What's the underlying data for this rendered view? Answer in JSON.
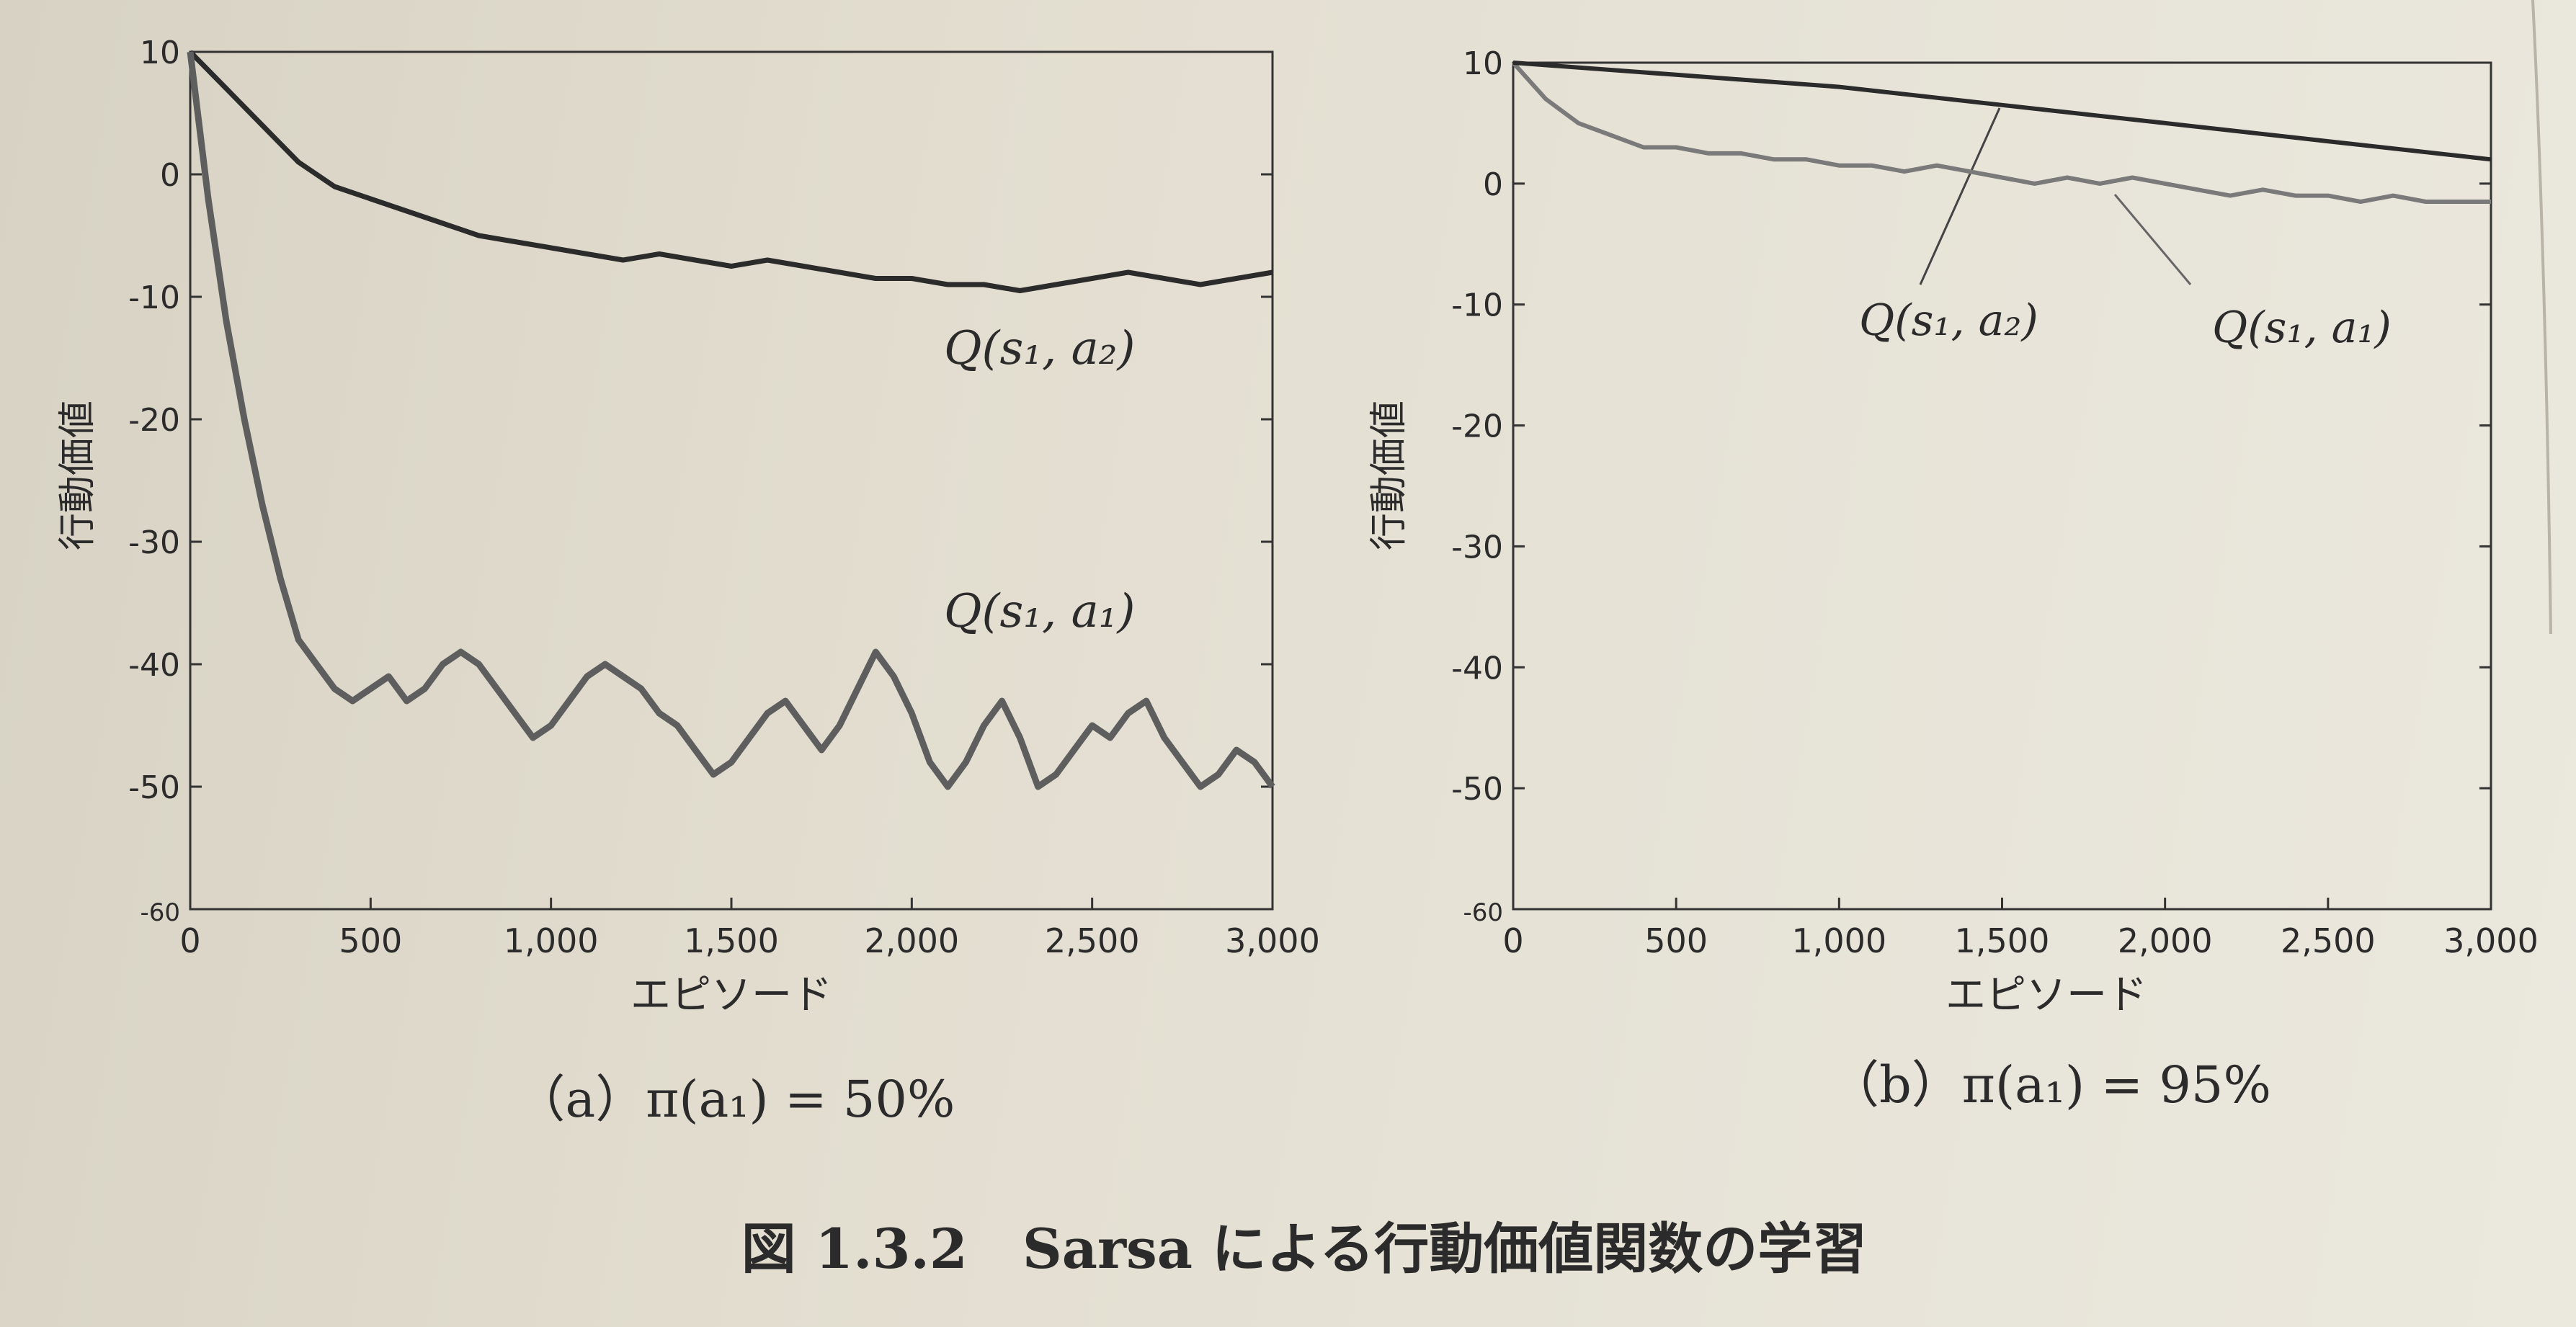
{
  "figure_caption": "図 1.3.2　Sarsa による行動価値関数の学習",
  "chart_data": [
    {
      "type": "line",
      "panel_label": "（a）π(a₁) = 50%",
      "xlabel": "エピソード",
      "ylabel": "行動価値",
      "xlim": [
        0,
        3000
      ],
      "ylim": [
        -60,
        10
      ],
      "xticks": [
        0,
        500,
        1000,
        1500,
        2000,
        2500,
        3000
      ],
      "xtick_labels": [
        "0",
        "500",
        "1,000",
        "1,500",
        "2,000",
        "2,500",
        "3,000"
      ],
      "yticks": [
        10,
        0,
        -10,
        -20,
        -30,
        -40,
        -50,
        -60
      ],
      "ytick_labels": [
        "10",
        "0",
        "-10",
        "-20",
        "-30",
        "-40",
        "-50",
        "-60"
      ],
      "series": [
        {
          "name": "Q(s₁, a₂)",
          "color": "#2b2b2b",
          "x": [
            0,
            100,
            200,
            300,
            400,
            500,
            600,
            700,
            800,
            900,
            1000,
            1100,
            1200,
            1300,
            1400,
            1500,
            1600,
            1700,
            1800,
            1900,
            2000,
            2100,
            2200,
            2300,
            2400,
            2500,
            2600,
            2700,
            2800,
            2900,
            3000
          ],
          "y": [
            10,
            7,
            4,
            1,
            -1,
            -2,
            -3,
            -4,
            -5,
            -5.5,
            -6,
            -6.5,
            -7,
            -6.5,
            -7,
            -7.5,
            -7,
            -7.5,
            -8,
            -8.5,
            -8.5,
            -9,
            -9,
            -9.5,
            -9,
            -8.5,
            -8,
            -8.5,
            -9,
            -8.5,
            -8
          ]
        },
        {
          "name": "Q(s₁, a₁)",
          "color": "#5e5e5e",
          "x": [
            0,
            50,
            100,
            150,
            200,
            250,
            300,
            350,
            400,
            450,
            500,
            550,
            600,
            650,
            700,
            750,
            800,
            850,
            900,
            950,
            1000,
            1050,
            1100,
            1150,
            1200,
            1250,
            1300,
            1350,
            1400,
            1450,
            1500,
            1550,
            1600,
            1650,
            1700,
            1750,
            1800,
            1850,
            1900,
            1950,
            2000,
            2050,
            2100,
            2150,
            2200,
            2250,
            2300,
            2350,
            2400,
            2450,
            2500,
            2550,
            2600,
            2650,
            2700,
            2750,
            2800,
            2850,
            2900,
            2950,
            3000
          ],
          "y": [
            10,
            -2,
            -12,
            -20,
            -27,
            -33,
            -38,
            -40,
            -42,
            -43,
            -42,
            -41,
            -43,
            -42,
            -40,
            -39,
            -40,
            -42,
            -44,
            -46,
            -45,
            -43,
            -41,
            -40,
            -41,
            -42,
            -44,
            -45,
            -47,
            -49,
            -48,
            -46,
            -44,
            -43,
            -45,
            -47,
            -45,
            -42,
            -39,
            -41,
            -44,
            -48,
            -50,
            -48,
            -45,
            -43,
            -46,
            -50,
            -49,
            -47,
            -45,
            -46,
            -44,
            -43,
            -46,
            -48,
            -50,
            -49,
            -47,
            -48,
            -50
          ]
        }
      ],
      "annotations": [
        {
          "text": "Q(s₁, a₂)"
        },
        {
          "text": "Q(s₁, a₁)"
        }
      ]
    },
    {
      "type": "line",
      "panel_label": "（b）π(a₁) = 95%",
      "xlabel": "エピソード",
      "ylabel": "行動価値",
      "xlim": [
        0,
        3000
      ],
      "ylim": [
        -60,
        10
      ],
      "xticks": [
        0,
        500,
        1000,
        1500,
        2000,
        2500,
        3000
      ],
      "xtick_labels": [
        "0",
        "500",
        "1,000",
        "1,500",
        "2,000",
        "2,500",
        "3,000"
      ],
      "yticks": [
        10,
        0,
        -10,
        -20,
        -30,
        -40,
        -50,
        -60
      ],
      "ytick_labels": [
        "10",
        "0",
        "-10",
        "-20",
        "-30",
        "-40",
        "-50",
        "-60"
      ],
      "series": [
        {
          "name": "Q(s₁, a₂)",
          "color": "#2b2b2b",
          "x": [
            0,
            500,
            1000,
            1500,
            2000,
            2500,
            3000
          ],
          "y": [
            10,
            9,
            8,
            6.5,
            5,
            3.5,
            2
          ]
        },
        {
          "name": "Q(s₁, a₁)",
          "color": "#7a7a7a",
          "x": [
            0,
            100,
            200,
            300,
            400,
            500,
            600,
            700,
            800,
            900,
            1000,
            1100,
            1200,
            1300,
            1400,
            1500,
            1600,
            1700,
            1800,
            1900,
            2000,
            2100,
            2200,
            2300,
            2400,
            2500,
            2600,
            2700,
            2800,
            2900,
            3000
          ],
          "y": [
            10,
            7,
            5,
            4,
            3,
            3,
            2.5,
            2.5,
            2,
            2,
            1.5,
            1.5,
            1,
            1.5,
            1,
            0.5,
            0,
            0.5,
            0,
            0.5,
            0,
            -0.5,
            -1,
            -0.5,
            -1,
            -1,
            -1.5,
            -1,
            -1.5,
            -1.5,
            -1.5
          ]
        }
      ],
      "annotations": [
        {
          "text": "Q(s₁, a₂)"
        },
        {
          "text": "Q(s₁, a₁)"
        }
      ]
    }
  ]
}
